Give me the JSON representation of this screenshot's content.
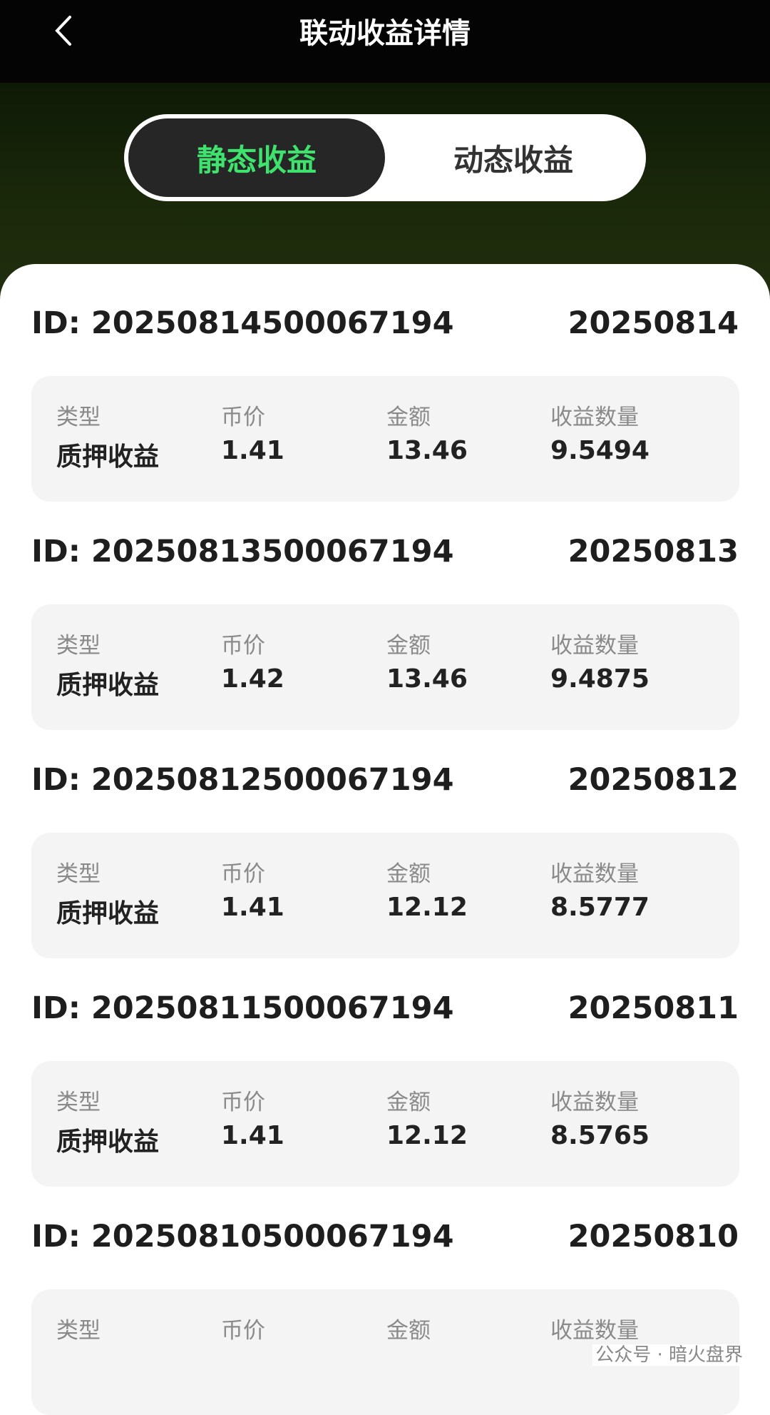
{
  "header": {
    "title": "联动收益详情",
    "back_icon": "chevron-left-icon"
  },
  "tabs": [
    {
      "label": "静态收益",
      "active": true
    },
    {
      "label": "动态收益",
      "active": false
    }
  ],
  "colors": {
    "accent": "#3ee26c",
    "header_bg": "#030403"
  },
  "column_labels": [
    "类型",
    "币价",
    "金额",
    "收益数量"
  ],
  "records": [
    {
      "id": "ID: 20250814500067194",
      "date": "20250814",
      "values": [
        "质押收益",
        "1.41",
        "13.46",
        "9.5494"
      ]
    },
    {
      "id": "ID: 20250813500067194",
      "date": "20250813",
      "values": [
        "质押收益",
        "1.42",
        "13.46",
        "9.4875"
      ]
    },
    {
      "id": "ID: 20250812500067194",
      "date": "20250812",
      "values": [
        "质押收益",
        "1.41",
        "12.12",
        "8.5777"
      ]
    },
    {
      "id": "ID: 20250811500067194",
      "date": "20250811",
      "values": [
        "质押收益",
        "1.41",
        "12.12",
        "8.5765"
      ]
    },
    {
      "id": "ID: 20250810500067194",
      "date": "20250810",
      "values": [
        "",
        "",
        "",
        ""
      ]
    }
  ],
  "watermark": "公众号 · 暗火盘界"
}
